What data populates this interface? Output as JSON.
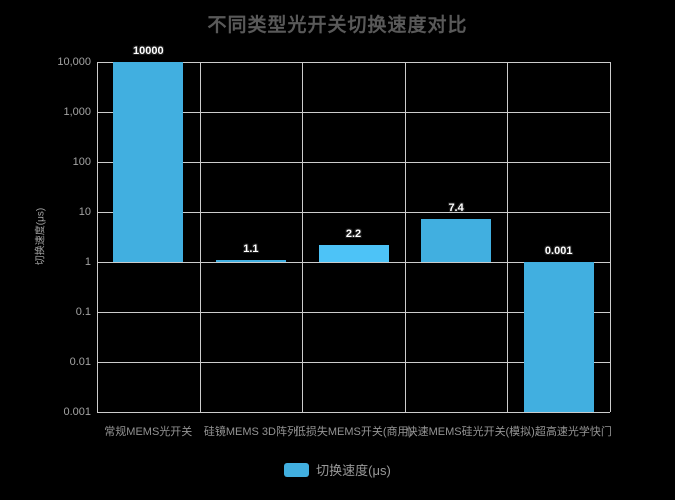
{
  "chart_data": {
    "type": "bar",
    "title": "不同类型光开关切换速度对比",
    "categories": [
      "常规MEMS光开关",
      "硅镜MEMS 3D阵列",
      "低损失MEMS开关(商用)",
      "快速MEMS硅光开关",
      "(模拟)超高速光学快门"
    ],
    "values": [
      10000,
      1.1,
      2.2,
      7.4,
      0.001
    ],
    "value_labels": [
      "10000",
      "1.1",
      "2.2",
      "7.4",
      "0.001"
    ],
    "ylabel": "切换速度(μs)",
    "scale": "log",
    "ylim": [
      0.001,
      10000
    ],
    "baseline": 1,
    "yticks": [
      {
        "value": 10000,
        "label": "10,000"
      },
      {
        "value": 1000,
        "label": "1,000"
      },
      {
        "value": 100,
        "label": "100"
      },
      {
        "value": 10,
        "label": "10"
      },
      {
        "value": 1,
        "label": "1"
      },
      {
        "value": 0.1,
        "label": "0.1"
      },
      {
        "value": 0.01,
        "label": "0.01"
      },
      {
        "value": 0.001,
        "label": "0.001"
      }
    ],
    "grid": true,
    "legend": {
      "label": "切换速度(μs)",
      "position": "bottom"
    },
    "bar_colors": [
      "#41afe0",
      "#41afe0",
      "#4dc3f7",
      "#41afe0",
      "#41afe0"
    ],
    "colors": {
      "background": "#000000",
      "grid": "#cccccc",
      "title": "#595959",
      "axis_text": "#a3a3a3",
      "category_text": "#949494",
      "value_label": "#ffffff",
      "legend_text": "#999999",
      "legend_swatch": "#41afe0"
    }
  }
}
